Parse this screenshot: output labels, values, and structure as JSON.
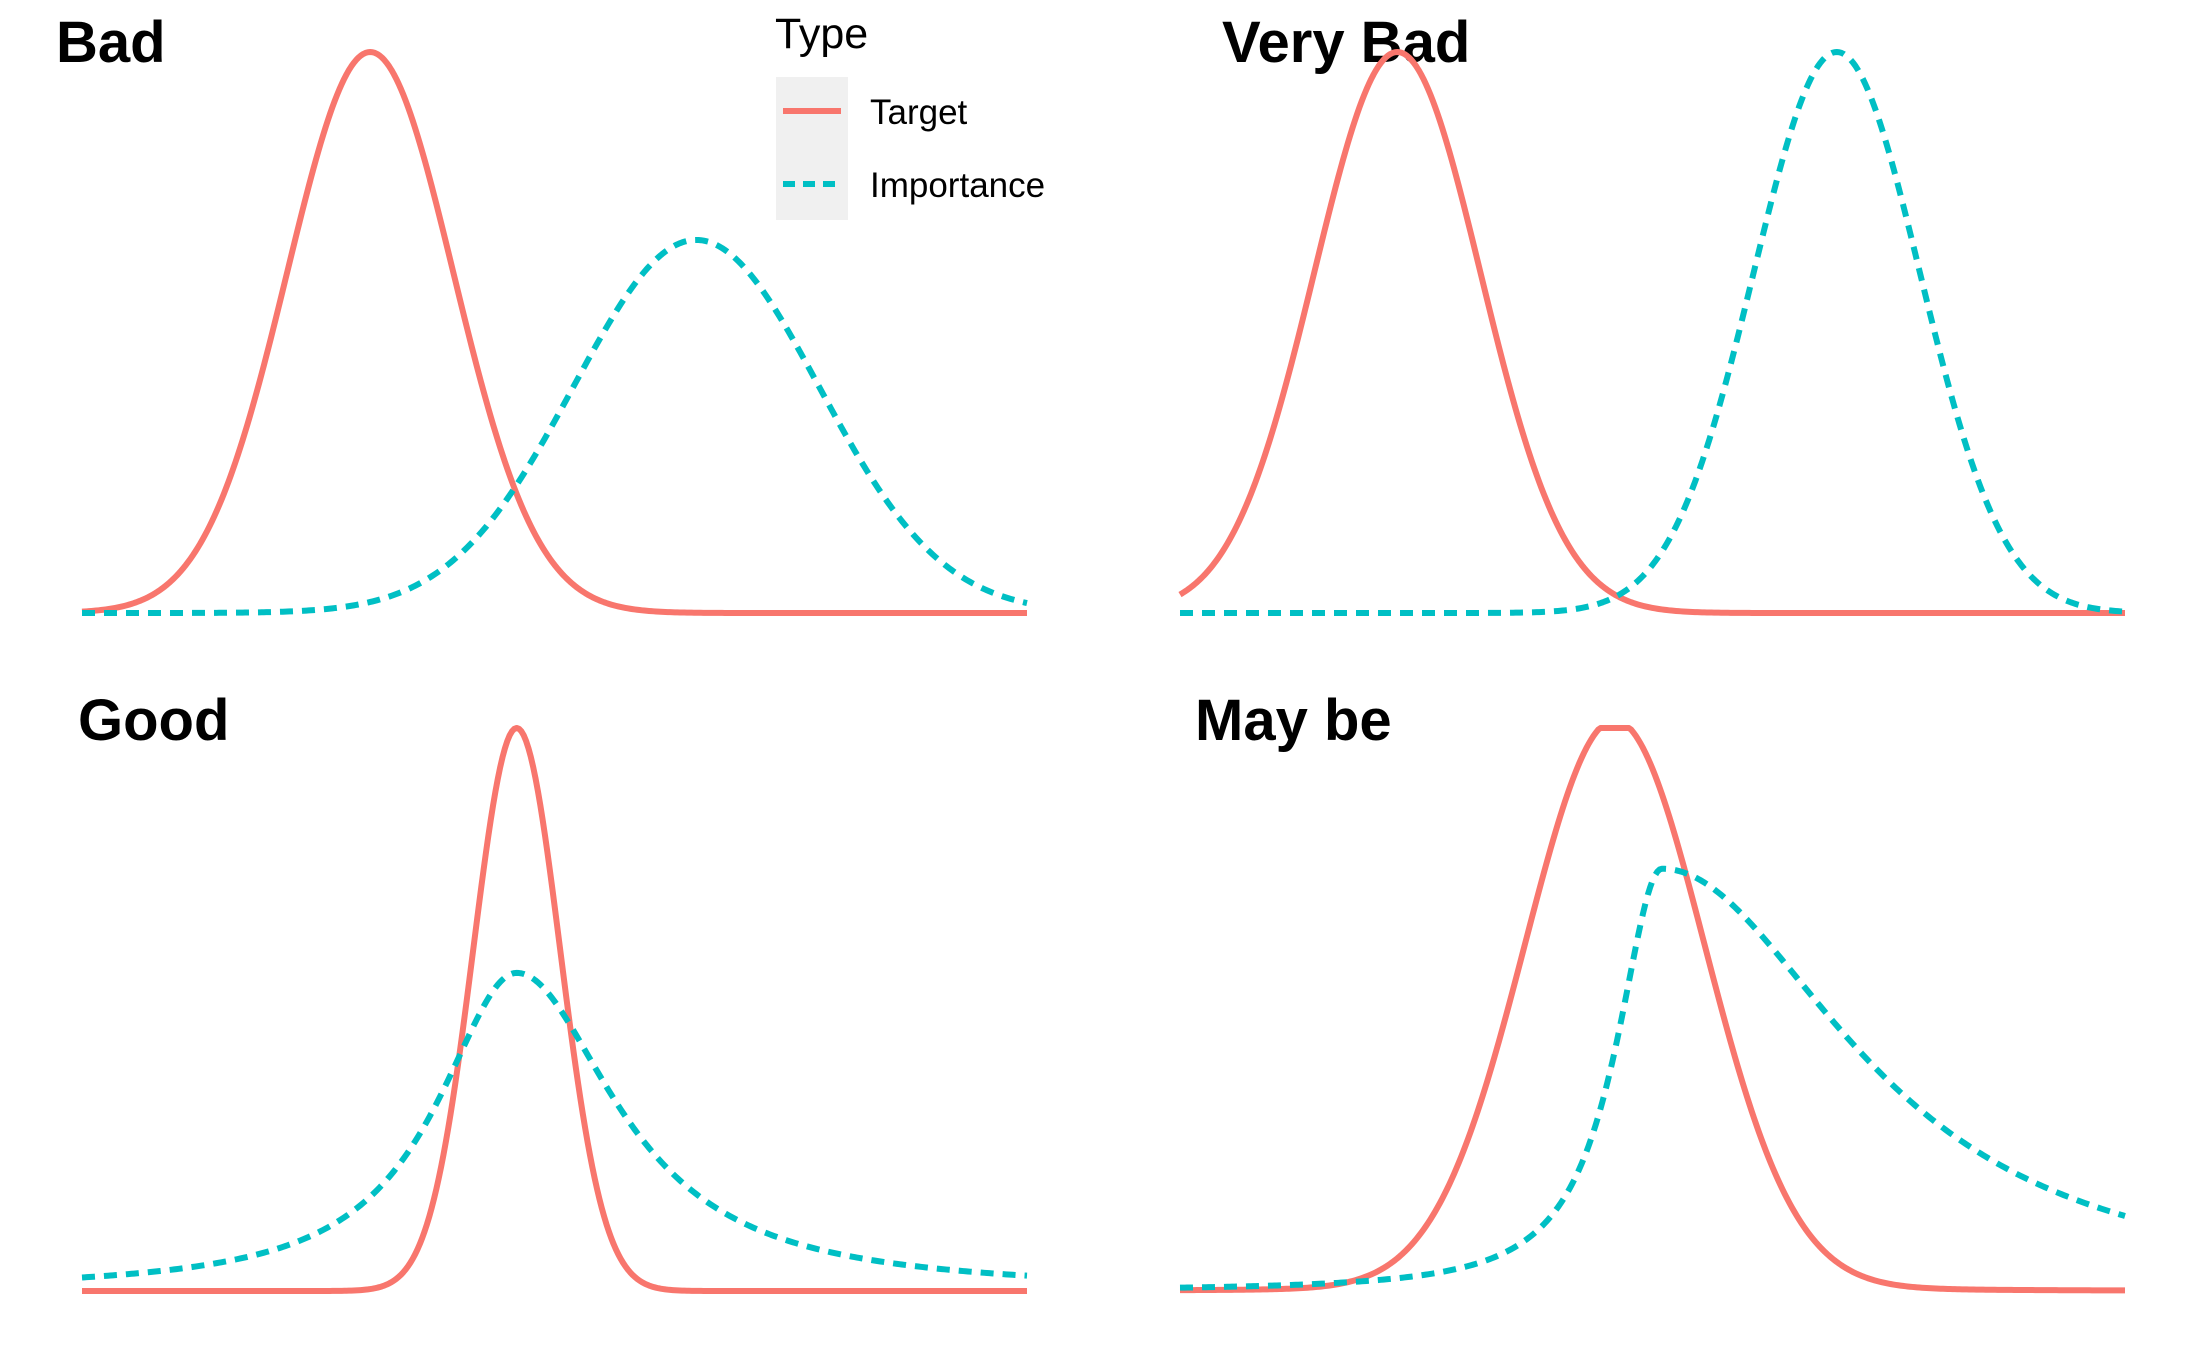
{
  "legend": {
    "title": "Type",
    "items": [
      {
        "label": "Target",
        "color": "#F8766D",
        "dash": "solid"
      },
      {
        "label": "Importance",
        "color": "#00BFC4",
        "dash": "dashed"
      }
    ]
  },
  "chart_data": [
    {
      "type": "line",
      "title": "Bad",
      "xlim": [
        0,
        10
      ],
      "ylim": [
        0,
        1
      ],
      "grid": false,
      "axes": false,
      "series": [
        {
          "name": "Target",
          "color": "#F8766D",
          "dash": "solid",
          "kind": "normal",
          "params": {
            "mean": 3.05,
            "sd": 0.88,
            "peak": 1.0
          }
        },
        {
          "name": "Importance",
          "color": "#00BFC4",
          "dash": "dashed",
          "kind": "normal",
          "params": {
            "mean": 6.5,
            "sd": 1.3,
            "peak": 0.665
          }
        }
      ]
    },
    {
      "type": "line",
      "title": "Very Bad",
      "xlim": [
        0,
        10
      ],
      "ylim": [
        0,
        1
      ],
      "grid": false,
      "axes": false,
      "series": [
        {
          "name": "Target",
          "color": "#F8766D",
          "dash": "solid",
          "kind": "normal",
          "params": {
            "mean": 2.3,
            "sd": 0.88,
            "peak": 1.0
          }
        },
        {
          "name": "Importance",
          "color": "#00BFC4",
          "dash": "dashed",
          "kind": "normal",
          "params": {
            "mean": 6.95,
            "sd": 0.88,
            "peak": 1.0
          }
        }
      ]
    },
    {
      "type": "line",
      "title": "Good",
      "xlim": [
        0,
        10
      ],
      "ylim": [
        0,
        1
      ],
      "grid": false,
      "axes": false,
      "series": [
        {
          "name": "Target",
          "color": "#F8766D",
          "dash": "solid",
          "kind": "normal",
          "params": {
            "mean": 4.6,
            "sd": 0.46,
            "peak": 1.0
          }
        },
        {
          "name": "Importance",
          "color": "#00BFC4",
          "dash": "dashed",
          "kind": "skewlaplace",
          "params": {
            "mode": 4.6,
            "scale_left": 1.0,
            "scale_right": 1.25,
            "peak": 0.565,
            "shape": 0.55
          }
        }
      ]
    },
    {
      "type": "line",
      "title": "May be",
      "xlim": [
        0,
        10
      ],
      "ylim": [
        0,
        1
      ],
      "grid": false,
      "axes": false,
      "series": [
        {
          "name": "Target",
          "color": "#F8766D",
          "dash": "solid",
          "kind": "normal",
          "params": {
            "mean": 4.6,
            "sd": 0.95,
            "peak": 1.0,
            "tail": 0.015
          }
        },
        {
          "name": "Importance",
          "color": "#00BFC4",
          "dash": "dashed",
          "kind": "skewlaplace",
          "params": {
            "mode": 5.1,
            "scale_left": 0.55,
            "scale_right": 2.3,
            "peak": 0.75,
            "shape": 0.65
          }
        }
      ]
    }
  ]
}
